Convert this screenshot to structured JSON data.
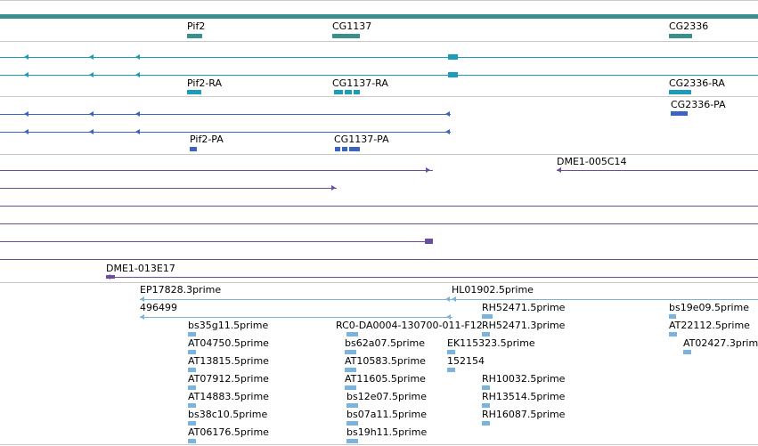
{
  "colors": {
    "gene": "#3a8f8f",
    "mrna": "#1b9cb8",
    "protein": "#3a64c0",
    "clone": "#6a4fa0",
    "est": "#7ab4dc",
    "separator": "#c8c8c8"
  },
  "tracks": {
    "genes": [
      {
        "name": "Pif2",
        "key": "pif2"
      },
      {
        "name": "CG1137",
        "key": "cg1137"
      },
      {
        "name": "CG2336",
        "key": "cg2336"
      }
    ],
    "transcripts": [
      {
        "name": "Pif2-RA",
        "key": "pif2-ra"
      },
      {
        "name": "CG1137-RA",
        "key": "cg1137-ra"
      },
      {
        "name": "CG2336-RA",
        "key": "cg2336-ra"
      },
      {
        "name": "CG2336-PA",
        "key": "cg2336-pa"
      }
    ],
    "proteins": [
      {
        "name": "Pif2-PA",
        "key": "pif2-pa"
      },
      {
        "name": "CG1137-PA",
        "key": "cg1137-pa"
      }
    ],
    "clones": [
      {
        "name": "DME1-005C14",
        "key": "dme1-005c14"
      },
      {
        "name": "DME1-013E17",
        "key": "dme1-013e17"
      }
    ],
    "ests": [
      {
        "name": "EP17828.3prime",
        "key": "ep17828"
      },
      {
        "name": "HL01902.5prime",
        "key": "hl01902"
      },
      {
        "name": "496499",
        "key": "496499"
      },
      {
        "name": "RH52471.5prime",
        "key": "rh52471-5"
      },
      {
        "name": "bs19e09.5prime",
        "key": "bs19e09"
      },
      {
        "name": "bs35g11.5prime",
        "key": "bs35g11"
      },
      {
        "name": "RC0-DA0004-130700-011-F12",
        "key": "rc0"
      },
      {
        "name": "RH52471.3prime",
        "key": "rh52471-3"
      },
      {
        "name": "AT22112.5prime",
        "key": "at22112"
      },
      {
        "name": "AT04750.5prime",
        "key": "at04750"
      },
      {
        "name": "bs62a07.5prime",
        "key": "bs62a07"
      },
      {
        "name": "EK115323.5prime",
        "key": "ek115323"
      },
      {
        "name": "AT02427.3prime",
        "key": "at02427"
      },
      {
        "name": "AT13815.5prime",
        "key": "at13815"
      },
      {
        "name": "AT10583.5prime",
        "key": "at10583"
      },
      {
        "name": "152154",
        "key": "152154"
      },
      {
        "name": "AT07912.5prime",
        "key": "at07912"
      },
      {
        "name": "AT11605.5prime",
        "key": "at11605"
      },
      {
        "name": "RH10032.5prime",
        "key": "rh10032"
      },
      {
        "name": "AT14883.5prime",
        "key": "at14883"
      },
      {
        "name": "bs12e07.5prime",
        "key": "bs12e07"
      },
      {
        "name": "RH13514.5prime",
        "key": "rh13514"
      },
      {
        "name": "bs38c10.5prime",
        "key": "bs38c10"
      },
      {
        "name": "bs07a11.5prime",
        "key": "bs07a11"
      },
      {
        "name": "RH16087.5prime",
        "key": "rh16087"
      },
      {
        "name": "AT06176.5prime",
        "key": "at06176"
      },
      {
        "name": "bs19h11.5prime",
        "key": "bs19h11"
      }
    ]
  }
}
